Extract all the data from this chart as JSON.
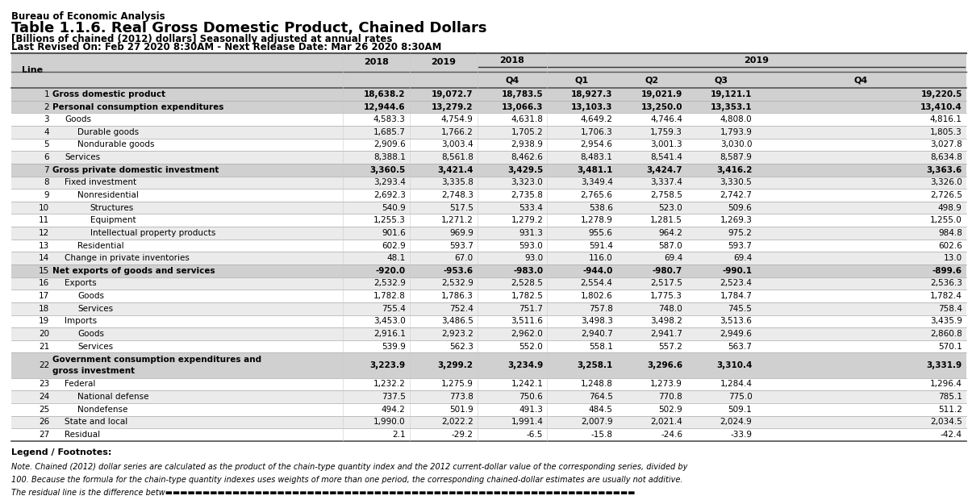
{
  "title_line1": "Bureau of Economic Analysis",
  "title_line2": "Table 1.1.6. Real Gross Domestic Product, Chained Dollars",
  "title_line3": "[Billions of chained (2012) dollars] Seasonally adjusted at annual rates",
  "title_line4": "Last Revised On: Feb 27 2020 8:30AM - Next Release Date: Mar 26 2020 8:30AM",
  "rows": [
    {
      "line": "1",
      "label": "Gross domestic product",
      "bold": true,
      "indent": 0,
      "vals": [
        "18,638.2",
        "19,072.7",
        "18,783.5",
        "18,927.3",
        "19,021.9",
        "19,121.1",
        "19,220.5"
      ]
    },
    {
      "line": "2",
      "label": "Personal consumption expenditures",
      "bold": true,
      "indent": 0,
      "vals": [
        "12,944.6",
        "13,279.2",
        "13,066.3",
        "13,103.3",
        "13,250.0",
        "13,353.1",
        "13,410.4"
      ]
    },
    {
      "line": "3",
      "label": "Goods",
      "bold": false,
      "indent": 1,
      "vals": [
        "4,583.3",
        "4,754.9",
        "4,631.8",
        "4,649.2",
        "4,746.4",
        "4,808.0",
        "4,816.1"
      ]
    },
    {
      "line": "4",
      "label": "Durable goods",
      "bold": false,
      "indent": 2,
      "vals": [
        "1,685.7",
        "1,766.2",
        "1,705.2",
        "1,706.3",
        "1,759.3",
        "1,793.9",
        "1,805.3"
      ]
    },
    {
      "line": "5",
      "label": "Nondurable goods",
      "bold": false,
      "indent": 2,
      "vals": [
        "2,909.6",
        "3,003.4",
        "2,938.9",
        "2,954.6",
        "3,001.3",
        "3,030.0",
        "3,027.8"
      ]
    },
    {
      "line": "6",
      "label": "Services",
      "bold": false,
      "indent": 1,
      "vals": [
        "8,388.1",
        "8,561.8",
        "8,462.6",
        "8,483.1",
        "8,541.4",
        "8,587.9",
        "8,634.8"
      ]
    },
    {
      "line": "7",
      "label": "Gross private domestic investment",
      "bold": true,
      "indent": 0,
      "vals": [
        "3,360.5",
        "3,421.4",
        "3,429.5",
        "3,481.1",
        "3,424.7",
        "3,416.2",
        "3,363.6"
      ]
    },
    {
      "line": "8",
      "label": "Fixed investment",
      "bold": false,
      "indent": 1,
      "vals": [
        "3,293.4",
        "3,335.8",
        "3,323.0",
        "3,349.4",
        "3,337.4",
        "3,330.5",
        "3,326.0"
      ]
    },
    {
      "line": "9",
      "label": "Nonresidential",
      "bold": false,
      "indent": 2,
      "vals": [
        "2,692.3",
        "2,748.3",
        "2,735.8",
        "2,765.6",
        "2,758.5",
        "2,742.7",
        "2,726.5"
      ]
    },
    {
      "line": "10",
      "label": "Structures",
      "bold": false,
      "indent": 3,
      "vals": [
        "540.9",
        "517.5",
        "533.4",
        "538.6",
        "523.0",
        "509.6",
        "498.9"
      ]
    },
    {
      "line": "11",
      "label": "Equipment",
      "bold": false,
      "indent": 3,
      "vals": [
        "1,255.3",
        "1,271.2",
        "1,279.2",
        "1,278.9",
        "1,281.5",
        "1,269.3",
        "1,255.0"
      ]
    },
    {
      "line": "12",
      "label": "Intellectual property products",
      "bold": false,
      "indent": 3,
      "vals": [
        "901.6",
        "969.9",
        "931.3",
        "955.6",
        "964.2",
        "975.2",
        "984.8"
      ]
    },
    {
      "line": "13",
      "label": "Residential",
      "bold": false,
      "indent": 2,
      "vals": [
        "602.9",
        "593.7",
        "593.0",
        "591.4",
        "587.0",
        "593.7",
        "602.6"
      ]
    },
    {
      "line": "14",
      "label": "Change in private inventories",
      "bold": false,
      "indent": 1,
      "vals": [
        "48.1",
        "67.0",
        "93.0",
        "116.0",
        "69.4",
        "69.4",
        "13.0"
      ]
    },
    {
      "line": "15",
      "label": "Net exports of goods and services",
      "bold": true,
      "indent": 0,
      "vals": [
        "-920.0",
        "-953.6",
        "-983.0",
        "-944.0",
        "-980.7",
        "-990.1",
        "-899.6"
      ]
    },
    {
      "line": "16",
      "label": "Exports",
      "bold": false,
      "indent": 1,
      "vals": [
        "2,532.9",
        "2,532.9",
        "2,528.5",
        "2,554.4",
        "2,517.5",
        "2,523.4",
        "2,536.3"
      ]
    },
    {
      "line": "17",
      "label": "Goods",
      "bold": false,
      "indent": 2,
      "vals": [
        "1,782.8",
        "1,786.3",
        "1,782.5",
        "1,802.6",
        "1,775.3",
        "1,784.7",
        "1,782.4"
      ]
    },
    {
      "line": "18",
      "label": "Services",
      "bold": false,
      "indent": 2,
      "vals": [
        "755.4",
        "752.4",
        "751.7",
        "757.8",
        "748.0",
        "745.5",
        "758.4"
      ]
    },
    {
      "line": "19",
      "label": "Imports",
      "bold": false,
      "indent": 1,
      "vals": [
        "3,453.0",
        "3,486.5",
        "3,511.6",
        "3,498.3",
        "3,498.2",
        "3,513.6",
        "3,435.9"
      ]
    },
    {
      "line": "20",
      "label": "Goods",
      "bold": false,
      "indent": 2,
      "vals": [
        "2,916.1",
        "2,923.2",
        "2,962.0",
        "2,940.7",
        "2,941.7",
        "2,949.6",
        "2,860.8"
      ]
    },
    {
      "line": "21",
      "label": "Services",
      "bold": false,
      "indent": 2,
      "vals": [
        "539.9",
        "562.3",
        "552.0",
        "558.1",
        "557.2",
        "563.7",
        "570.1"
      ]
    },
    {
      "line": "22",
      "label": "Government consumption expenditures and\ngross investment",
      "bold": true,
      "indent": 0,
      "vals": [
        "3,223.9",
        "3,299.2",
        "3,234.9",
        "3,258.1",
        "3,296.6",
        "3,310.4",
        "3,331.9"
      ]
    },
    {
      "line": "23",
      "label": "Federal",
      "bold": false,
      "indent": 1,
      "vals": [
        "1,232.2",
        "1,275.9",
        "1,242.1",
        "1,248.8",
        "1,273.9",
        "1,284.4",
        "1,296.4"
      ]
    },
    {
      "line": "24",
      "label": "National defense",
      "bold": false,
      "indent": 2,
      "vals": [
        "737.5",
        "773.8",
        "750.6",
        "764.5",
        "770.8",
        "775.0",
        "785.1"
      ]
    },
    {
      "line": "25",
      "label": "Nondefense",
      "bold": false,
      "indent": 2,
      "vals": [
        "494.2",
        "501.9",
        "491.3",
        "484.5",
        "502.9",
        "509.1",
        "511.2"
      ]
    },
    {
      "line": "26",
      "label": "State and local",
      "bold": false,
      "indent": 1,
      "vals": [
        "1,990.0",
        "2,022.2",
        "1,991.4",
        "2,007.9",
        "2,021.4",
        "2,024.9",
        "2,034.5"
      ]
    },
    {
      "line": "27",
      "label": "Residual",
      "bold": false,
      "indent": 1,
      "vals": [
        "2.1",
        "-29.2",
        "-6.5",
        "-15.8",
        "-24.6",
        "-33.9",
        "-42.4"
      ]
    }
  ],
  "footnote_title": "Legend / Footnotes:",
  "note_lines": [
    "Note. Chained (2012) dollar series are calculated as the product of the chain-type quantity index and the 2012 current-dollar value of the corresponding series, divided by",
    "100. Because the formula for the chain-type quantity indexes uses weights of more than one period, the corresponding chained-dollar estimates are usually not additive.",
    "The residual line is the difference betw▬▬▬▬▬▬▬▬▬▬▬▬▬▬▬▬▬▬▬▬▬▬▬▬▬▬▬▬▬▬▬▬▬▬▬▬▬▬▬▬▬▬▬▬▬▬▬▬▬▬▬▬▬▬▬▬▬▬▬▬▬▬▬"
  ],
  "bg_color": "#ffffff",
  "row_colors": {
    "bold": "#d0d0d0",
    "even": "#ebebeb",
    "odd": "#ffffff"
  },
  "header_bg": "#d0d0d0",
  "line_color_heavy": "#555555",
  "line_color_light": "#aaaaaa"
}
